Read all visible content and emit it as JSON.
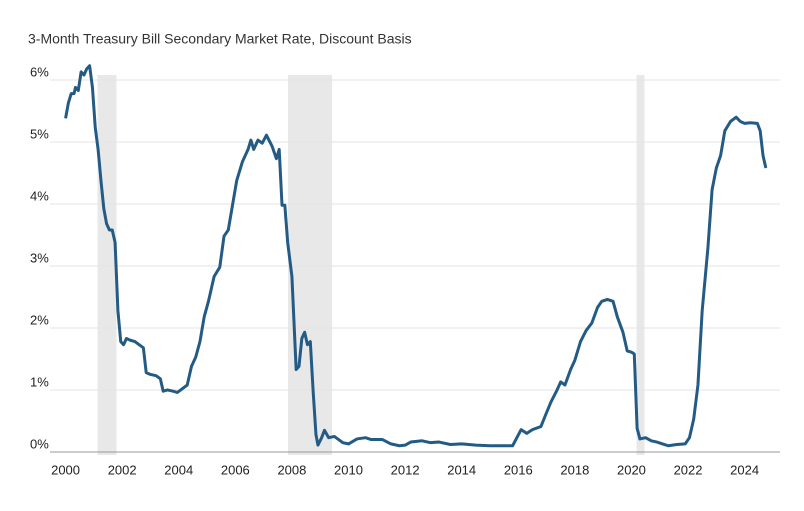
{
  "chart_data": {
    "type": "line",
    "title": "3-Month Treasury Bill Secondary Market Rate, Discount Basis",
    "x": [
      2000.0,
      2000.1,
      2000.2,
      2000.3,
      2000.35,
      2000.45,
      2000.55,
      2000.65,
      2000.75,
      2000.85,
      2000.95,
      2001.05,
      2001.15,
      2001.25,
      2001.35,
      2001.45,
      2001.55,
      2001.65,
      2001.75,
      2001.85,
      2001.95,
      2002.05,
      2002.15,
      2002.3,
      2002.45,
      2002.6,
      2002.75,
      2002.85,
      2003.0,
      2003.2,
      2003.35,
      2003.45,
      2003.6,
      2003.8,
      2003.95,
      2004.1,
      2004.3,
      2004.45,
      2004.6,
      2004.75,
      2004.9,
      2005.05,
      2005.25,
      2005.45,
      2005.6,
      2005.75,
      2005.9,
      2006.05,
      2006.25,
      2006.45,
      2006.55,
      2006.65,
      2006.8,
      2006.95,
      2007.1,
      2007.3,
      2007.45,
      2007.55,
      2007.65,
      2007.75,
      2007.85,
      2008.0,
      2008.15,
      2008.25,
      2008.35,
      2008.45,
      2008.55,
      2008.65,
      2008.75,
      2008.85,
      2008.92,
      2009.05,
      2009.15,
      2009.3,
      2009.5,
      2009.8,
      2010.0,
      2010.3,
      2010.6,
      2010.8,
      2011.2,
      2011.5,
      2011.8,
      2012.0,
      2012.2,
      2012.6,
      2012.9,
      2013.2,
      2013.6,
      2014.0,
      2014.5,
      2015.0,
      2015.5,
      2015.8,
      2015.95,
      2016.1,
      2016.3,
      2016.5,
      2016.8,
      2016.95,
      2017.15,
      2017.35,
      2017.5,
      2017.65,
      2017.85,
      2018.0,
      2018.2,
      2018.4,
      2018.6,
      2018.8,
      2018.95,
      2019.15,
      2019.35,
      2019.5,
      2019.7,
      2019.85,
      2020.0,
      2020.1,
      2020.2,
      2020.3,
      2020.5,
      2020.7,
      2020.9,
      2021.1,
      2021.3,
      2021.6,
      2021.9,
      2022.05,
      2022.2,
      2022.35,
      2022.5,
      2022.7,
      2022.85,
      2023.0,
      2023.15,
      2023.3,
      2023.5,
      2023.7,
      2023.85,
      2024.0,
      2024.2,
      2024.45,
      2024.55,
      2024.65,
      2024.75
    ],
    "series": [
      {
        "color": "#245b85",
        "values": [
          5.3,
          5.55,
          5.7,
          5.7,
          5.8,
          5.75,
          6.05,
          6.0,
          6.1,
          6.15,
          5.8,
          5.15,
          4.8,
          4.3,
          3.85,
          3.6,
          3.5,
          3.5,
          3.3,
          2.2,
          1.7,
          1.65,
          1.75,
          1.72,
          1.7,
          1.65,
          1.6,
          1.2,
          1.17,
          1.15,
          1.1,
          0.9,
          0.92,
          0.9,
          0.88,
          0.93,
          1.0,
          1.3,
          1.45,
          1.7,
          2.1,
          2.35,
          2.75,
          2.9,
          3.4,
          3.5,
          3.9,
          4.3,
          4.6,
          4.8,
          4.95,
          4.8,
          4.95,
          4.9,
          5.03,
          4.85,
          4.65,
          4.8,
          3.9,
          3.9,
          3.3,
          2.75,
          1.25,
          1.3,
          1.75,
          1.85,
          1.65,
          1.7,
          0.9,
          0.2,
          0.03,
          0.15,
          0.27,
          0.15,
          0.17,
          0.07,
          0.05,
          0.13,
          0.15,
          0.12,
          0.12,
          0.05,
          0.02,
          0.03,
          0.08,
          0.1,
          0.07,
          0.08,
          0.04,
          0.05,
          0.03,
          0.02,
          0.02,
          0.02,
          0.15,
          0.28,
          0.22,
          0.28,
          0.33,
          0.5,
          0.72,
          0.9,
          1.05,
          1.0,
          1.25,
          1.4,
          1.7,
          1.88,
          2.0,
          2.25,
          2.35,
          2.38,
          2.35,
          2.1,
          1.85,
          1.55,
          1.53,
          1.5,
          0.3,
          0.13,
          0.15,
          0.1,
          0.08,
          0.05,
          0.02,
          0.04,
          0.05,
          0.15,
          0.45,
          1.0,
          2.2,
          3.2,
          4.15,
          4.5,
          4.7,
          5.1,
          5.25,
          5.32,
          5.25,
          5.22,
          5.23,
          5.22,
          5.1,
          4.7,
          4.5
        ]
      }
    ],
    "shaded_periods": [
      [
        2001.13,
        2001.8
      ],
      [
        2007.86,
        2009.42
      ],
      [
        2020.18,
        2020.46
      ]
    ],
    "shade_color": "#e8e8e8",
    "xlim": [
      1999.45,
      2025.25
    ],
    "xticks": [
      2000,
      2002,
      2004,
      2006,
      2008,
      2010,
      2012,
      2014,
      2016,
      2018,
      2020,
      2022,
      2024
    ],
    "ylim": [
      0,
      6
    ],
    "yticks": [
      {
        "value": 0,
        "label": "0%"
      },
      {
        "value": 1,
        "label": "1%"
      },
      {
        "value": 2,
        "label": "2%"
      },
      {
        "value": 3,
        "label": "3%"
      },
      {
        "value": 4,
        "label": "4%"
      },
      {
        "value": 5,
        "label": "5%"
      },
      {
        "value": 6,
        "label": "6%"
      }
    ],
    "grid": true
  }
}
